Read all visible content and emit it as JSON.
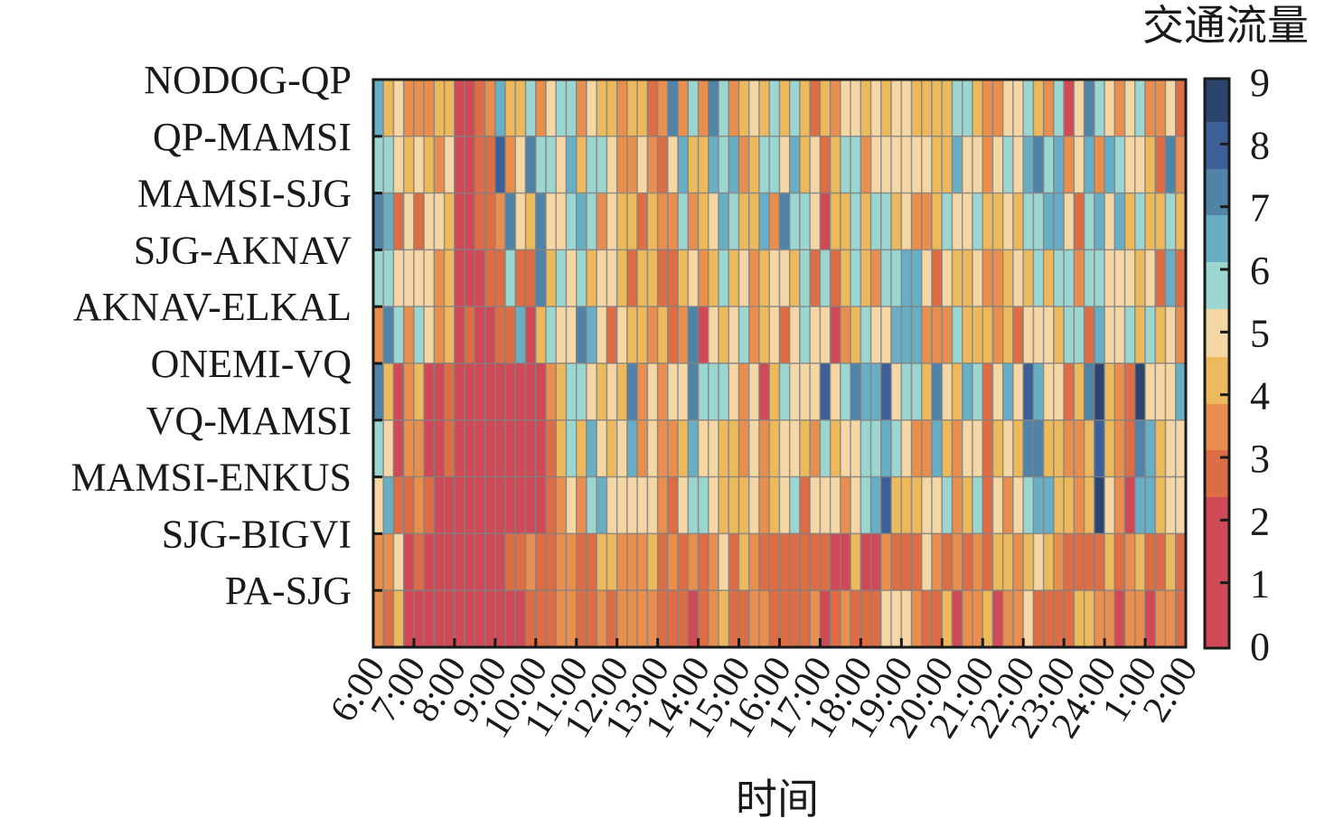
{
  "chart_data": {
    "type": "heatmap",
    "xlabel": "时间",
    "ylabel": "",
    "colorbar_title": "交通流量",
    "colorbar_ticks": [
      "0",
      "1",
      "2",
      "3",
      "4",
      "5",
      "6",
      "7",
      "8",
      "9"
    ],
    "value_range": [
      0,
      9
    ],
    "x_tick_labels": [
      "6:00",
      "7:00",
      "8:00",
      "9:00",
      "10:00",
      "11:00",
      "12:00",
      "13:00",
      "14:00",
      "15:00",
      "16:00",
      "17:00",
      "18:00",
      "19:00",
      "20:00",
      "21:00",
      "22:00",
      "23:00",
      "24:00",
      "1:00",
      "2:00"
    ],
    "rows": [
      "NODOG-QP",
      "QP-MAMSI",
      "MAMSI-SJG",
      "SJG-AKNAV",
      "AKNAV-ELKAL",
      "ONEMI-VQ",
      "VQ-MAMSI",
      "MAMSI-ENKUS",
      "SJG-BIGVI",
      "PA-SJG"
    ],
    "colors": [
      "#cf4a56",
      "#dd6d44",
      "#e88f4f",
      "#ecba5c",
      "#f5d7a6",
      "#9bd6d1",
      "#68aec4",
      "#4f83a7",
      "#3c5f97",
      "#2c456f"
    ],
    "grid": false,
    "values": [
      [
        6,
        3,
        4,
        2,
        2,
        2,
        3,
        3,
        0,
        0,
        1,
        2,
        6,
        3,
        3,
        5,
        2,
        4,
        5,
        5,
        2,
        4,
        3,
        3,
        2,
        3,
        3,
        1,
        2,
        7,
        2,
        5,
        2,
        7,
        5,
        2,
        3,
        4,
        3,
        5,
        3,
        5,
        3,
        1,
        3,
        2,
        4,
        4,
        3,
        4,
        3,
        4,
        4,
        3,
        3,
        3,
        3,
        5,
        5,
        3,
        2,
        2,
        4,
        4,
        5,
        3,
        2,
        5,
        0,
        4,
        7,
        5,
        4,
        2,
        4,
        5,
        2,
        2,
        4,
        1
      ],
      [
        5,
        5,
        4,
        3,
        4,
        3,
        2,
        4,
        0,
        0,
        1,
        1,
        8,
        2,
        4,
        7,
        5,
        5,
        4,
        6,
        3,
        5,
        5,
        4,
        2,
        2,
        4,
        2,
        1,
        4,
        6,
        3,
        3,
        6,
        5,
        6,
        2,
        3,
        5,
        5,
        4,
        6,
        3,
        4,
        1,
        3,
        5,
        5,
        2,
        4,
        4,
        4,
        4,
        4,
        4,
        3,
        3,
        6,
        4,
        4,
        2,
        4,
        5,
        4,
        6,
        7,
        5,
        6,
        2,
        4,
        6,
        2,
        6,
        5,
        4,
        4,
        3,
        1,
        7,
        2
      ],
      [
        7,
        6,
        1,
        4,
        1,
        4,
        4,
        3,
        0,
        0,
        1,
        1,
        2,
        7,
        4,
        3,
        7,
        4,
        4,
        5,
        6,
        5,
        2,
        4,
        3,
        3,
        1,
        3,
        2,
        2,
        5,
        2,
        3,
        4,
        6,
        5,
        3,
        3,
        6,
        2,
        7,
        5,
        5,
        4,
        0,
        3,
        3,
        5,
        3,
        5,
        5,
        3,
        4,
        2,
        2,
        3,
        5,
        4,
        4,
        5,
        3,
        3,
        4,
        3,
        5,
        5,
        6,
        6,
        4,
        1,
        5,
        6,
        4,
        6,
        3,
        5,
        3,
        3,
        5,
        3
      ],
      [
        5,
        5,
        4,
        4,
        4,
        4,
        2,
        3,
        0,
        0,
        0,
        1,
        1,
        5,
        1,
        1,
        7,
        3,
        5,
        4,
        5,
        3,
        4,
        4,
        3,
        1,
        3,
        3,
        1,
        1,
        3,
        4,
        2,
        3,
        5,
        3,
        4,
        2,
        3,
        4,
        4,
        3,
        5,
        1,
        5,
        1,
        3,
        5,
        3,
        2,
        5,
        5,
        6,
        6,
        4,
        1,
        4,
        3,
        3,
        4,
        2,
        2,
        3,
        4,
        3,
        5,
        3,
        5,
        5,
        2,
        5,
        5,
        4,
        4,
        4,
        3,
        4,
        1,
        6,
        1
      ],
      [
        2,
        7,
        5,
        2,
        5,
        4,
        2,
        3,
        0,
        1,
        0,
        0,
        1,
        1,
        6,
        0,
        3,
        5,
        4,
        4,
        7,
        6,
        4,
        1,
        4,
        3,
        3,
        2,
        3,
        1,
        2,
        7,
        0,
        4,
        3,
        4,
        5,
        2,
        3,
        4,
        1,
        4,
        5,
        4,
        4,
        0,
        2,
        3,
        5,
        4,
        4,
        6,
        6,
        6,
        2,
        2,
        2,
        5,
        3,
        3,
        3,
        2,
        3,
        1,
        4,
        4,
        4,
        3,
        5,
        5,
        1,
        6,
        4,
        4,
        5,
        3,
        5,
        3,
        4,
        2
      ],
      [
        7,
        3,
        0,
        2,
        3,
        0,
        0,
        1,
        0,
        0,
        0,
        0,
        0,
        0,
        0,
        0,
        0,
        2,
        3,
        5,
        5,
        4,
        3,
        4,
        3,
        7,
        2,
        4,
        2,
        4,
        4,
        7,
        5,
        5,
        5,
        4,
        2,
        4,
        0,
        3,
        5,
        4,
        4,
        4,
        8,
        4,
        5,
        7,
        6,
        6,
        8,
        4,
        5,
        5,
        3,
        7,
        4,
        3,
        6,
        5,
        1,
        4,
        6,
        4,
        8,
        6,
        4,
        4,
        1,
        3,
        7,
        9,
        3,
        2,
        1,
        9,
        4,
        4,
        4,
        6
      ],
      [
        5,
        4,
        0,
        2,
        2,
        0,
        0,
        1,
        0,
        0,
        0,
        0,
        0,
        0,
        0,
        0,
        0,
        1,
        3,
        5,
        3,
        6,
        4,
        3,
        4,
        6,
        2,
        4,
        2,
        2,
        3,
        6,
        4,
        4,
        3,
        3,
        2,
        4,
        2,
        3,
        4,
        4,
        3,
        2,
        5,
        3,
        4,
        4,
        5,
        5,
        6,
        5,
        4,
        2,
        2,
        6,
        3,
        2,
        4,
        4,
        1,
        3,
        4,
        3,
        7,
        7,
        3,
        3,
        2,
        2,
        3,
        8,
        3,
        2,
        1,
        7,
        6,
        3,
        4,
        4
      ],
      [
        4,
        6,
        1,
        1,
        2,
        1,
        0,
        0,
        0,
        0,
        0,
        0,
        0,
        0,
        0,
        0,
        0,
        1,
        2,
        4,
        2,
        5,
        6,
        4,
        4,
        4,
        4,
        4,
        2,
        1,
        4,
        5,
        5,
        4,
        3,
        3,
        3,
        4,
        2,
        3,
        4,
        5,
        1,
        4,
        4,
        4,
        2,
        4,
        5,
        6,
        8,
        3,
        3,
        3,
        4,
        4,
        5,
        2,
        3,
        5,
        1,
        4,
        2,
        4,
        5,
        6,
        6,
        3,
        3,
        2,
        3,
        9,
        4,
        2,
        0,
        6,
        6,
        3,
        4,
        4
      ],
      [
        2,
        2,
        4,
        0,
        1,
        0,
        0,
        0,
        0,
        0,
        0,
        0,
        0,
        1,
        1,
        2,
        1,
        1,
        2,
        2,
        1,
        1,
        3,
        3,
        2,
        2,
        2,
        3,
        1,
        2,
        1,
        2,
        1,
        2,
        4,
        1,
        3,
        2,
        1,
        1,
        1,
        1,
        1,
        1,
        1,
        0,
        0,
        3,
        0,
        0,
        2,
        1,
        1,
        1,
        4,
        2,
        1,
        2,
        1,
        2,
        1,
        3,
        3,
        2,
        3,
        4,
        3,
        2,
        1,
        1,
        1,
        1,
        3,
        1,
        2,
        3,
        1,
        1,
        3,
        1
      ],
      [
        2,
        1,
        3,
        0,
        0,
        0,
        0,
        0,
        0,
        0,
        0,
        0,
        0,
        0,
        0,
        1,
        1,
        1,
        2,
        2,
        1,
        1,
        2,
        1,
        2,
        2,
        2,
        2,
        1,
        1,
        1,
        0,
        1,
        2,
        3,
        1,
        1,
        2,
        2,
        1,
        1,
        1,
        1,
        2,
        0,
        1,
        2,
        1,
        1,
        1,
        4,
        4,
        4,
        2,
        1,
        1,
        3,
        0,
        2,
        2,
        3,
        0,
        2,
        2,
        4,
        1,
        1,
        1,
        1,
        3,
        3,
        2,
        2,
        0,
        2,
        2,
        0,
        2,
        2,
        1
      ]
    ]
  }
}
